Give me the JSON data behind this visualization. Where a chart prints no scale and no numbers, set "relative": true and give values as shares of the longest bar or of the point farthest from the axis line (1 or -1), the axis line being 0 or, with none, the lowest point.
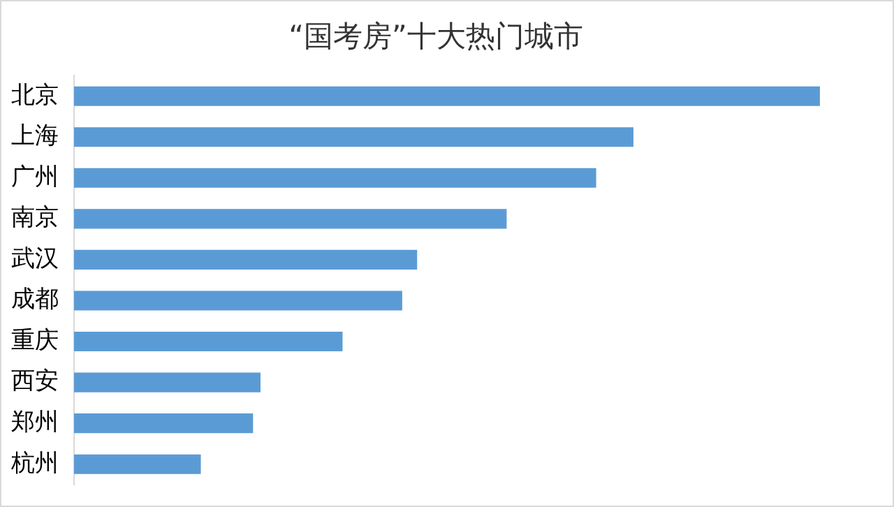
{
  "chart_data": {
    "type": "bar",
    "orientation": "horizontal",
    "relative": true,
    "title": "“国考房”十大热门城市",
    "categories": [
      "北京",
      "上海",
      "广州",
      "南京",
      "武汉",
      "成都",
      "重庆",
      "西安",
      "郑州",
      "杭州"
    ],
    "values": [
      1,
      0.75,
      0.7,
      0.58,
      0.46,
      0.44,
      0.36,
      0.25,
      0.24,
      0.17
    ],
    "color": "#5b9bd5",
    "legend": false
  }
}
